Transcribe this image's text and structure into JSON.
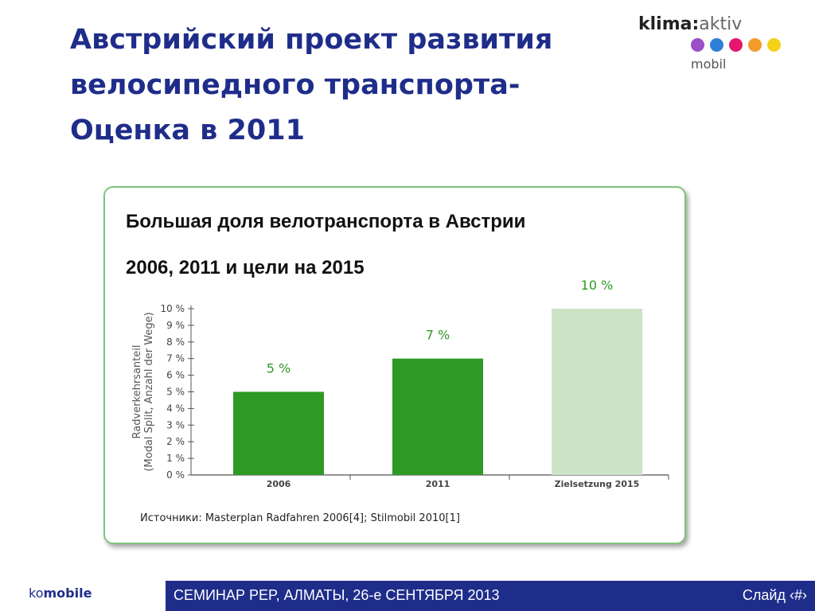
{
  "slide": {
    "title_lines": [
      "Австрийский проект развития",
      "велосипедного транспорта-",
      "Оценка в 2011"
    ]
  },
  "logo": {
    "brand_bold": "klima",
    "brand_sep": ":",
    "brand_light": "aktiv",
    "sub": "mobil",
    "dot_colors": [
      "#9b4fc8",
      "#2f7fd6",
      "#e5166e",
      "#f39b2a",
      "#f5d21a"
    ]
  },
  "chart_data": {
    "type": "bar",
    "title_line1": "Большая доля велотранспорта в Австрии",
    "title_line2": "2006, 2011 и цели на 2015",
    "categories": [
      "2006",
      "2011",
      "Zielsetzung 2015"
    ],
    "values": [
      5,
      7,
      10
    ],
    "value_labels": [
      "5 %",
      "7 %",
      "10 %"
    ],
    "bar_colors": [
      "#2e9a25",
      "#2e9a25",
      "#cde3c6"
    ],
    "ylim": [
      0,
      10
    ],
    "yticks": [
      "0 %",
      "1 %",
      "2 %",
      "3 %",
      "4 %",
      "5 %",
      "6 %",
      "7 %",
      "8 %",
      "9 %",
      "10 %"
    ],
    "ylabel_line1": "Radverkehrsanteil",
    "ylabel_line2": "(Modal Split, Anzahl der Wege)",
    "label_color": "#2e9a25"
  },
  "source": "Источники: Masterplan Radfahren 2006[4]; Stilmobil 2010[1]",
  "footer": {
    "brand_light": "ko",
    "brand_bold": "mobile",
    "event": "СЕМИНАР PEP, АЛМАТЫ, 26-е СЕНТЯБРЯ 2013",
    "slide_label": "Слайд ‹#›"
  }
}
